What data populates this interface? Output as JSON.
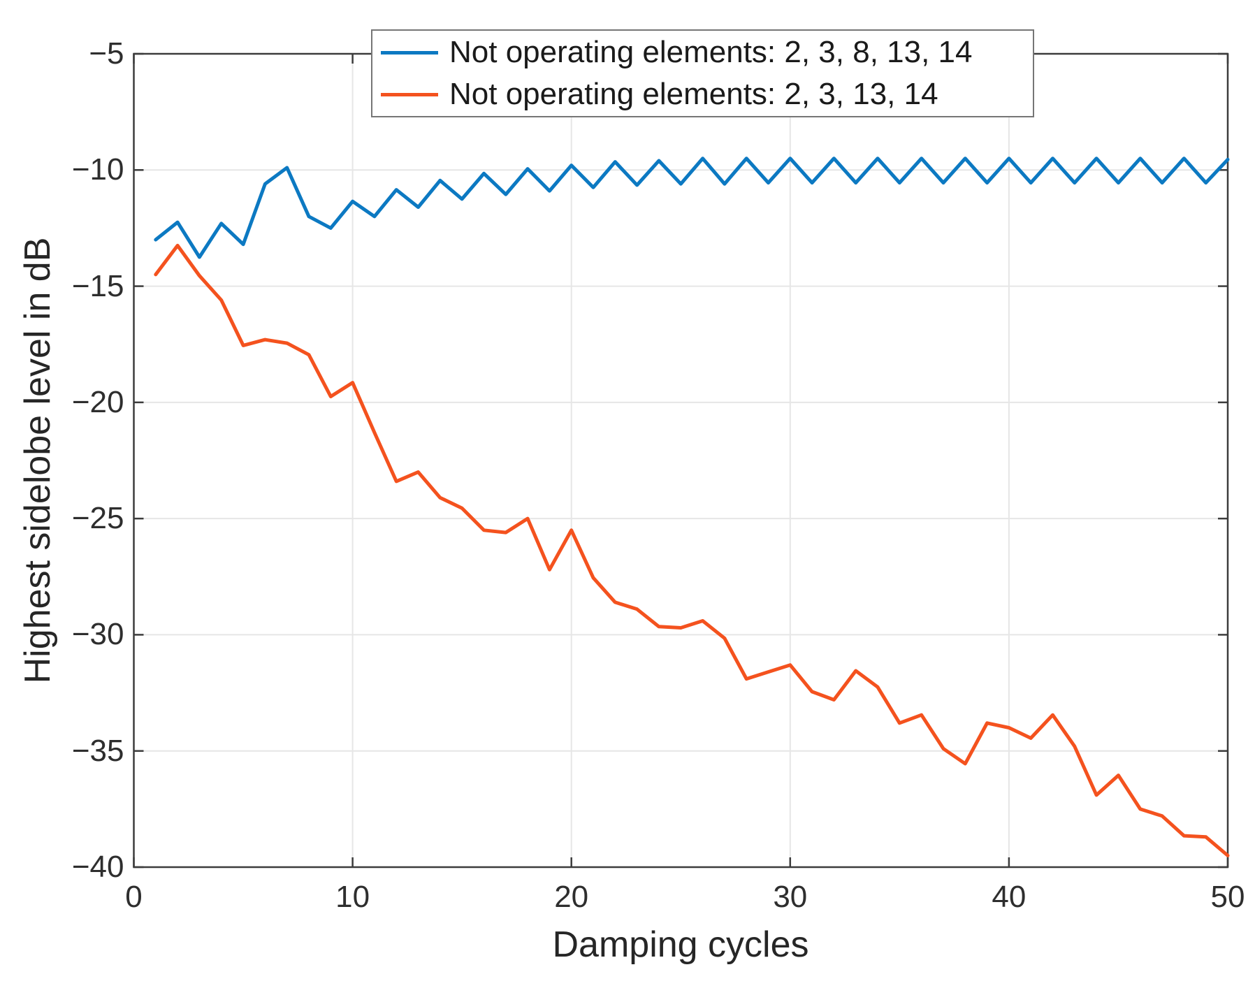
{
  "figure": {
    "background": "#ffffff",
    "axis_color": "#3c3c3c",
    "grid_color": "#e6e6e6",
    "text_color": "#262626"
  },
  "chart_data": {
    "type": "line",
    "title": "",
    "xlabel": "Damping cycles",
    "ylabel": "Highest sidelobe level in dB",
    "xlim": [
      0,
      50
    ],
    "ylim": [
      -40,
      -5
    ],
    "xticks": [
      0,
      10,
      20,
      30,
      40,
      50
    ],
    "yticks": [
      -40,
      -35,
      -30,
      -25,
      -20,
      -15,
      -10,
      -5
    ],
    "grid": true,
    "legend_position": "top-center-inside",
    "x": [
      1,
      2,
      3,
      4,
      5,
      6,
      7,
      8,
      9,
      10,
      11,
      12,
      13,
      14,
      15,
      16,
      17,
      18,
      19,
      20,
      21,
      22,
      23,
      24,
      25,
      26,
      27,
      28,
      29,
      30,
      31,
      32,
      33,
      34,
      35,
      36,
      37,
      38,
      39,
      40,
      41,
      42,
      43,
      44,
      45,
      46,
      47,
      48,
      49,
      50
    ],
    "series": [
      {
        "name": "Not operating elements: 2, 3, 8, 13, 14",
        "color": "#0c79c2",
        "values": [
          -13.0,
          -12.25,
          -13.75,
          -12.3,
          -13.2,
          -10.6,
          -9.9,
          -12.0,
          -12.5,
          -11.35,
          -12.0,
          -10.85,
          -11.6,
          -10.45,
          -11.25,
          -10.15,
          -11.05,
          -9.95,
          -10.9,
          -9.8,
          -10.75,
          -9.65,
          -10.65,
          -9.6,
          -10.6,
          -9.5,
          -10.6,
          -9.5,
          -10.55,
          -9.5,
          -10.55,
          -9.5,
          -10.55,
          -9.5,
          -10.55,
          -9.5,
          -10.55,
          -9.5,
          -10.55,
          -9.5,
          -10.55,
          -9.5,
          -10.55,
          -9.5,
          -10.55,
          -9.5,
          -10.55,
          -9.5,
          -10.55,
          -9.55
        ]
      },
      {
        "name": "Not operating elements: 2, 3, 13, 14",
        "color": "#f4521e",
        "values": [
          -14.5,
          -13.25,
          -14.55,
          -15.6,
          -17.55,
          -17.3,
          -17.45,
          -17.95,
          -19.75,
          -19.15,
          -21.3,
          -23.4,
          -23.0,
          -24.1,
          -24.55,
          -25.5,
          -25.6,
          -25.0,
          -27.2,
          -25.5,
          -27.55,
          -28.6,
          -28.9,
          -29.65,
          -29.7,
          -29.4,
          -30.15,
          -31.9,
          -31.6,
          -31.3,
          -32.45,
          -32.8,
          -31.55,
          -32.25,
          -33.8,
          -33.45,
          -34.9,
          -35.55,
          -33.8,
          -34.0,
          -34.45,
          -33.45,
          -34.8,
          -36.9,
          -36.05,
          -37.5,
          -37.8,
          -38.65,
          -38.7,
          -39.5
        ]
      }
    ]
  }
}
